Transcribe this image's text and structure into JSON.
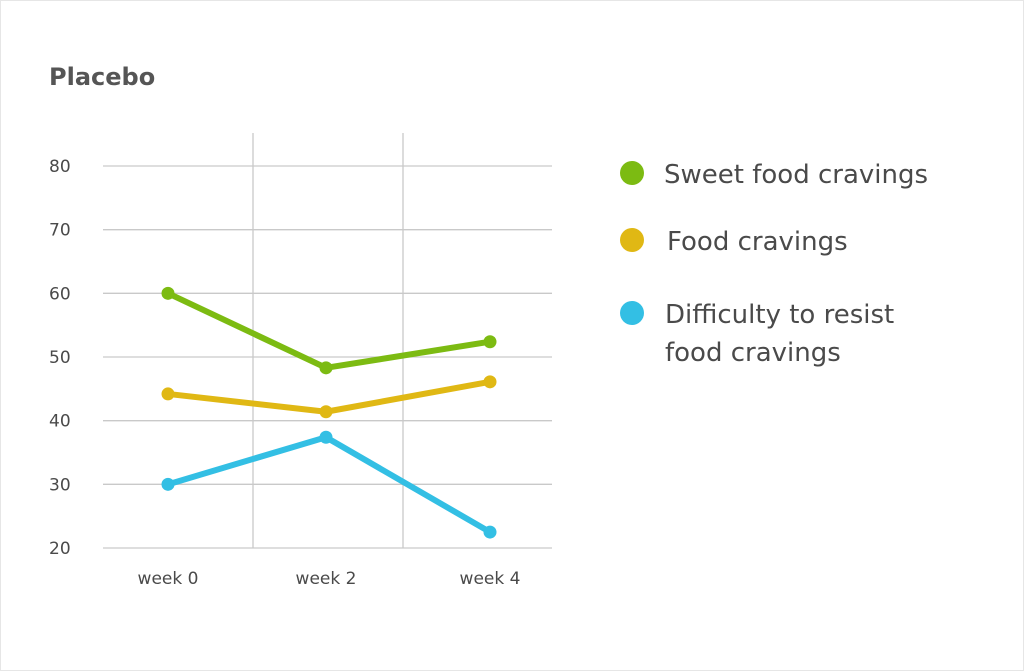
{
  "chart_data": {
    "type": "line",
    "title": "Placebo",
    "xlabel": "",
    "ylabel": "",
    "categories": [
      "week 0",
      "week 2",
      "week 4"
    ],
    "yticks": [
      80,
      70,
      60,
      50,
      40,
      30,
      20
    ],
    "ylim": [
      20,
      80
    ],
    "grid": true,
    "legend_position": "right",
    "series": [
      {
        "name": "Sweet food cravings",
        "color": "#7cbb12",
        "values": [
          60,
          48.3,
          52.4
        ]
      },
      {
        "name": "Food cravings",
        "color": "#e0b814",
        "values": [
          44.2,
          41.4,
          46.1
        ]
      },
      {
        "name": "Difficulty to resist food cravings",
        "color": "#33bfe4",
        "values": [
          30,
          37.4,
          22.5
        ]
      }
    ]
  },
  "legend": {
    "items": [
      {
        "lines": [
          "Sweet food cravings"
        ]
      },
      {
        "lines": [
          "Food cravings"
        ]
      },
      {
        "lines": [
          "Difficulty to resist",
          "food cravings"
        ]
      }
    ]
  }
}
